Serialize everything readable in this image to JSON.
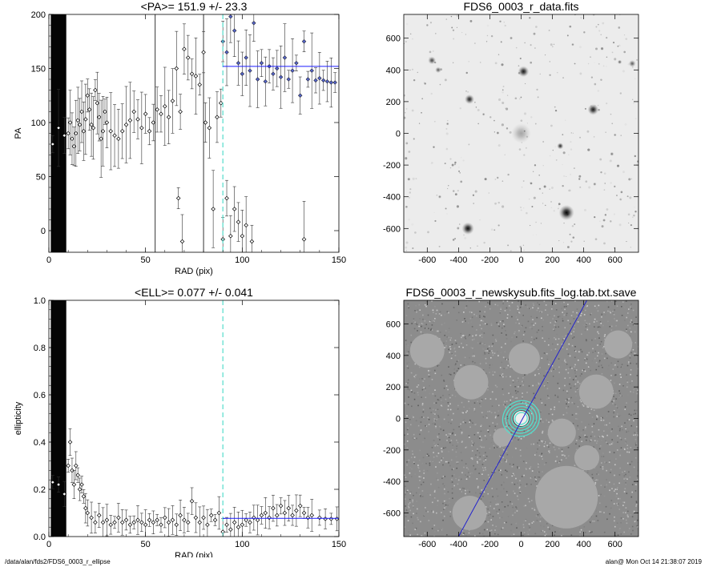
{
  "footer": {
    "path": "/data/alan/fds2/FDS6_0003_r_ellipse",
    "stamp": "alan@  Mon Oct 14 21:38:07 2019"
  },
  "colors": {
    "fit_line": "#1a1aff",
    "marker_blue": "#5566cc",
    "dashed": "#55ddcc",
    "mask_gray": "#a8a8a8"
  },
  "chart_data": [
    {
      "id": "pa",
      "type": "scatter",
      "title": "<PA>= 151.9 +/-  23.3",
      "xlabel": "RAD (pix)",
      "ylabel": "PA",
      "xlim": [
        0,
        150
      ],
      "ylim": [
        -20,
        200
      ],
      "xticks": [
        0,
        50,
        100,
        150
      ],
      "yticks": [
        0,
        50,
        100,
        150,
        200
      ],
      "grid": false,
      "shaded_x": [
        1,
        9
      ],
      "vline_solid": [
        55,
        80
      ],
      "vline_dashed": 90,
      "mean_line": {
        "y": 151.9,
        "x": [
          90,
          150
        ]
      },
      "points": [
        {
          "x": 2,
          "y": 80
        },
        {
          "x": 5,
          "y": 95
        },
        {
          "x": 8,
          "y": 88
        },
        {
          "x": 10,
          "y": 90
        },
        {
          "x": 11,
          "y": 100
        },
        {
          "x": 12,
          "y": 85
        },
        {
          "x": 13,
          "y": 78
        },
        {
          "x": 14,
          "y": 90
        },
        {
          "x": 15,
          "y": 102
        },
        {
          "x": 16,
          "y": 98
        },
        {
          "x": 17,
          "y": 110
        },
        {
          "x": 18,
          "y": 92
        },
        {
          "x": 19,
          "y": 103
        },
        {
          "x": 20,
          "y": 125
        },
        {
          "x": 21,
          "y": 112
        },
        {
          "x": 22,
          "y": 98
        },
        {
          "x": 23,
          "y": 95
        },
        {
          "x": 24,
          "y": 130
        },
        {
          "x": 25,
          "y": 118
        },
        {
          "x": 26,
          "y": 105
        },
        {
          "x": 27,
          "y": 85
        },
        {
          "x": 28,
          "y": 92
        },
        {
          "x": 29,
          "y": 110
        },
        {
          "x": 30,
          "y": 100
        },
        {
          "x": 32,
          "y": 92
        },
        {
          "x": 34,
          "y": 88
        },
        {
          "x": 36,
          "y": 85
        },
        {
          "x": 38,
          "y": 92
        },
        {
          "x": 40,
          "y": 98
        },
        {
          "x": 42,
          "y": 102
        },
        {
          "x": 44,
          "y": 110
        },
        {
          "x": 46,
          "y": 103
        },
        {
          "x": 48,
          "y": 95
        },
        {
          "x": 50,
          "y": 108
        },
        {
          "x": 52,
          "y": 92
        },
        {
          "x": 54,
          "y": 100
        },
        {
          "x": 56,
          "y": 112
        },
        {
          "x": 58,
          "y": 108
        },
        {
          "x": 60,
          "y": 115
        },
        {
          "x": 62,
          "y": 105
        },
        {
          "x": 64,
          "y": 120
        },
        {
          "x": 66,
          "y": 150
        },
        {
          "x": 67,
          "y": 30
        },
        {
          "x": 68,
          "y": 110
        },
        {
          "x": 69,
          "y": -10
        },
        {
          "x": 70,
          "y": 168
        },
        {
          "x": 72,
          "y": 160
        },
        {
          "x": 74,
          "y": 145
        },
        {
          "x": 76,
          "y": 143
        },
        {
          "x": 78,
          "y": 135
        },
        {
          "x": 80,
          "y": 165
        },
        {
          "x": 81,
          "y": 100
        },
        {
          "x": 83,
          "y": 95
        },
        {
          "x": 85,
          "y": 20
        },
        {
          "x": 87,
          "y": 105
        },
        {
          "x": 89,
          "y": 118
        },
        {
          "x": 90,
          "y": -8
        },
        {
          "x": 92,
          "y": 30
        },
        {
          "x": 94,
          "y": -5
        },
        {
          "x": 96,
          "y": 20
        },
        {
          "x": 98,
          "y": 8
        },
        {
          "x": 100,
          "y": -5
        },
        {
          "x": 102,
          "y": 5
        },
        {
          "x": 105,
          "y": -10
        },
        {
          "x": 132,
          "y": -8
        }
      ],
      "blue_points": [
        {
          "x": 90,
          "y": 175
        },
        {
          "x": 92,
          "y": 165
        },
        {
          "x": 94,
          "y": 198
        },
        {
          "x": 96,
          "y": 185
        },
        {
          "x": 98,
          "y": 155
        },
        {
          "x": 100,
          "y": 145
        },
        {
          "x": 102,
          "y": 160
        },
        {
          "x": 104,
          "y": 148
        },
        {
          "x": 106,
          "y": 192
        },
        {
          "x": 108,
          "y": 140
        },
        {
          "x": 110,
          "y": 155
        },
        {
          "x": 112,
          "y": 138
        },
        {
          "x": 114,
          "y": 152
        },
        {
          "x": 116,
          "y": 145
        },
        {
          "x": 118,
          "y": 150
        },
        {
          "x": 120,
          "y": 142
        },
        {
          "x": 122,
          "y": 160
        },
        {
          "x": 124,
          "y": 140
        },
        {
          "x": 126,
          "y": 148
        },
        {
          "x": 128,
          "y": 155
        },
        {
          "x": 130,
          "y": 125
        },
        {
          "x": 132,
          "y": 175
        },
        {
          "x": 134,
          "y": 140
        },
        {
          "x": 136,
          "y": 148
        },
        {
          "x": 138,
          "y": 139
        },
        {
          "x": 140,
          "y": 141
        },
        {
          "x": 142,
          "y": 139
        },
        {
          "x": 144,
          "y": 138
        },
        {
          "x": 146,
          "y": 137
        },
        {
          "x": 148,
          "y": 137
        }
      ]
    },
    {
      "id": "img1",
      "type": "heatmap",
      "title": "FDS6_0003_r_data.fits",
      "xlim": [
        -750,
        750
      ],
      "ylim": [
        -750,
        750
      ],
      "xticks": [
        -600,
        -400,
        -200,
        0,
        200,
        400,
        600
      ],
      "yticks": [
        -600,
        -400,
        -200,
        0,
        200,
        400,
        600
      ],
      "sources": [
        {
          "x": 0,
          "y": 0,
          "r": 45,
          "a": 0.3
        },
        {
          "x": 15,
          "y": 390,
          "r": 25,
          "a": 0.9
        },
        {
          "x": -330,
          "y": 215,
          "r": 22,
          "a": 0.85
        },
        {
          "x": 460,
          "y": 150,
          "r": 25,
          "a": 0.9
        },
        {
          "x": -570,
          "y": 460,
          "r": 18,
          "a": 0.7
        },
        {
          "x": -530,
          "y": 400,
          "r": 14,
          "a": 0.6
        },
        {
          "x": 250,
          "y": -80,
          "r": 15,
          "a": 0.8
        },
        {
          "x": -340,
          "y": -600,
          "r": 28,
          "a": 0.95
        },
        {
          "x": 290,
          "y": -500,
          "r": 35,
          "a": 1
        },
        {
          "x": 710,
          "y": 440,
          "r": 16,
          "a": 0.6
        },
        {
          "x": 630,
          "y": 450,
          "r": 10,
          "a": 0.6
        },
        {
          "x": -520,
          "y": -400,
          "r": 8,
          "a": 0.5
        },
        {
          "x": 470,
          "y": -320,
          "r": 8,
          "a": 0.5
        },
        {
          "x": 580,
          "y": -130,
          "r": 9,
          "a": 0.55
        },
        {
          "x": -470,
          "y": 60,
          "r": 7,
          "a": 0.5
        },
        {
          "x": 600,
          "y": -10,
          "r": 7,
          "a": 0.5
        },
        {
          "x": -240,
          "y": 120,
          "r": 7,
          "a": 0.5
        },
        {
          "x": 330,
          "y": 560,
          "r": 7,
          "a": 0.5
        },
        {
          "x": -150,
          "y": -280,
          "r": 6,
          "a": 0.5
        },
        {
          "x": 120,
          "y": -350,
          "r": 6,
          "a": 0.5
        }
      ]
    },
    {
      "id": "ell",
      "type": "scatter",
      "title": "<ELL>= 0.077 +/-  0.041",
      "xlabel": "RAD (pix)",
      "ylabel": "ellipticity",
      "xlim": [
        0,
        150
      ],
      "ylim": [
        0,
        1
      ],
      "xticks": [
        0,
        50,
        100,
        150
      ],
      "yticks": [
        0.0,
        0.2,
        0.4,
        0.6,
        0.8,
        1.0
      ],
      "grid": false,
      "shaded_x": [
        1,
        9
      ],
      "vline_dashed": 90,
      "mean_line": {
        "y": 0.077,
        "x": [
          90,
          150
        ]
      },
      "points": [
        {
          "x": 2,
          "y": 0.23
        },
        {
          "x": 5,
          "y": 0.22
        },
        {
          "x": 8,
          "y": 0.18
        },
        {
          "x": 10,
          "y": 0.3
        },
        {
          "x": 11,
          "y": 0.4
        },
        {
          "x": 12,
          "y": 0.28
        },
        {
          "x": 13,
          "y": 0.22
        },
        {
          "x": 14,
          "y": 0.3
        },
        {
          "x": 15,
          "y": 0.26
        },
        {
          "x": 16,
          "y": 0.2
        },
        {
          "x": 17,
          "y": 0.22
        },
        {
          "x": 18,
          "y": 0.17
        },
        {
          "x": 19,
          "y": 0.12
        },
        {
          "x": 20,
          "y": 0.1
        },
        {
          "x": 22,
          "y": 0.08
        },
        {
          "x": 24,
          "y": 0.06
        },
        {
          "x": 26,
          "y": 0.09
        },
        {
          "x": 28,
          "y": 0.06
        },
        {
          "x": 30,
          "y": 0.07
        },
        {
          "x": 32,
          "y": 0.05
        },
        {
          "x": 34,
          "y": 0.06
        },
        {
          "x": 36,
          "y": 0.08
        },
        {
          "x": 38,
          "y": 0.06
        },
        {
          "x": 40,
          "y": 0.07
        },
        {
          "x": 42,
          "y": 0.05
        },
        {
          "x": 44,
          "y": 0.06
        },
        {
          "x": 46,
          "y": 0.07
        },
        {
          "x": 48,
          "y": 0.06
        },
        {
          "x": 50,
          "y": 0.05
        },
        {
          "x": 52,
          "y": 0.07
        },
        {
          "x": 54,
          "y": 0.06
        },
        {
          "x": 56,
          "y": 0.07
        },
        {
          "x": 58,
          "y": 0.05
        },
        {
          "x": 60,
          "y": 0.08
        },
        {
          "x": 62,
          "y": 0.06
        },
        {
          "x": 64,
          "y": 0.07
        },
        {
          "x": 66,
          "y": 0.05
        },
        {
          "x": 68,
          "y": 0.09
        },
        {
          "x": 70,
          "y": 0.07
        },
        {
          "x": 72,
          "y": 0.06
        },
        {
          "x": 74,
          "y": 0.15
        },
        {
          "x": 76,
          "y": 0.08
        },
        {
          "x": 78,
          "y": 0.06
        },
        {
          "x": 80,
          "y": 0.08
        },
        {
          "x": 82,
          "y": 0.05
        },
        {
          "x": 84,
          "y": 0.09
        },
        {
          "x": 86,
          "y": 0.07
        },
        {
          "x": 88,
          "y": 0.1
        },
        {
          "x": 90,
          "y": 0.02
        },
        {
          "x": 92,
          "y": 0.05
        },
        {
          "x": 94,
          "y": 0.03
        },
        {
          "x": 96,
          "y": 0.06
        },
        {
          "x": 98,
          "y": 0.04
        },
        {
          "x": 100,
          "y": 0.05
        },
        {
          "x": 102,
          "y": 0.07
        },
        {
          "x": 104,
          "y": 0.06
        },
        {
          "x": 106,
          "y": 0.08
        },
        {
          "x": 108,
          "y": 0.07
        },
        {
          "x": 110,
          "y": 0.09
        },
        {
          "x": 112,
          "y": 0.1
        },
        {
          "x": 114,
          "y": 0.08
        },
        {
          "x": 116,
          "y": 0.12
        },
        {
          "x": 118,
          "y": 0.09
        },
        {
          "x": 120,
          "y": 0.13
        },
        {
          "x": 122,
          "y": 0.1
        },
        {
          "x": 124,
          "y": 0.12
        },
        {
          "x": 126,
          "y": 0.09
        },
        {
          "x": 128,
          "y": 0.11
        },
        {
          "x": 130,
          "y": 0.13
        },
        {
          "x": 132,
          "y": 0.1
        },
        {
          "x": 134,
          "y": 0.08
        },
        {
          "x": 136,
          "y": 0.09
        },
        {
          "x": 140,
          "y": 0.08
        },
        {
          "x": 143,
          "y": 0.075
        },
        {
          "x": 146,
          "y": 0.075
        },
        {
          "x": 149,
          "y": 0.075
        }
      ]
    },
    {
      "id": "img2",
      "type": "heatmap",
      "title": "FDS6_0003_r_newskysub.fits_log.tab.txt.save",
      "xlim": [
        -750,
        750
      ],
      "ylim": [
        -750,
        750
      ],
      "xticks": [
        -600,
        -400,
        -200,
        0,
        200,
        400,
        600
      ],
      "yticks": [
        -600,
        -400,
        -200,
        0,
        200,
        400,
        600
      ],
      "masks": [
        {
          "x": -600,
          "y": 430,
          "r": 110
        },
        {
          "x": -320,
          "y": 230,
          "r": 110
        },
        {
          "x": 20,
          "y": 380,
          "r": 100
        },
        {
          "x": 480,
          "y": 170,
          "r": 110
        },
        {
          "x": -330,
          "y": -600,
          "r": 110
        },
        {
          "x": 290,
          "y": -500,
          "r": 200
        },
        {
          "x": 260,
          "y": -90,
          "r": 90
        },
        {
          "x": 620,
          "y": 470,
          "r": 90
        },
        {
          "x": -120,
          "y": -120,
          "r": 60
        },
        {
          "x": 420,
          "y": -250,
          "r": 80
        }
      ],
      "line": {
        "x1": -400,
        "y1": -750,
        "x2": 420,
        "y2": 750
      },
      "ellipses": [
        {
          "r": 40
        },
        {
          "r": 60
        },
        {
          "r": 80
        },
        {
          "r": 100
        },
        {
          "r": 120
        }
      ]
    }
  ]
}
